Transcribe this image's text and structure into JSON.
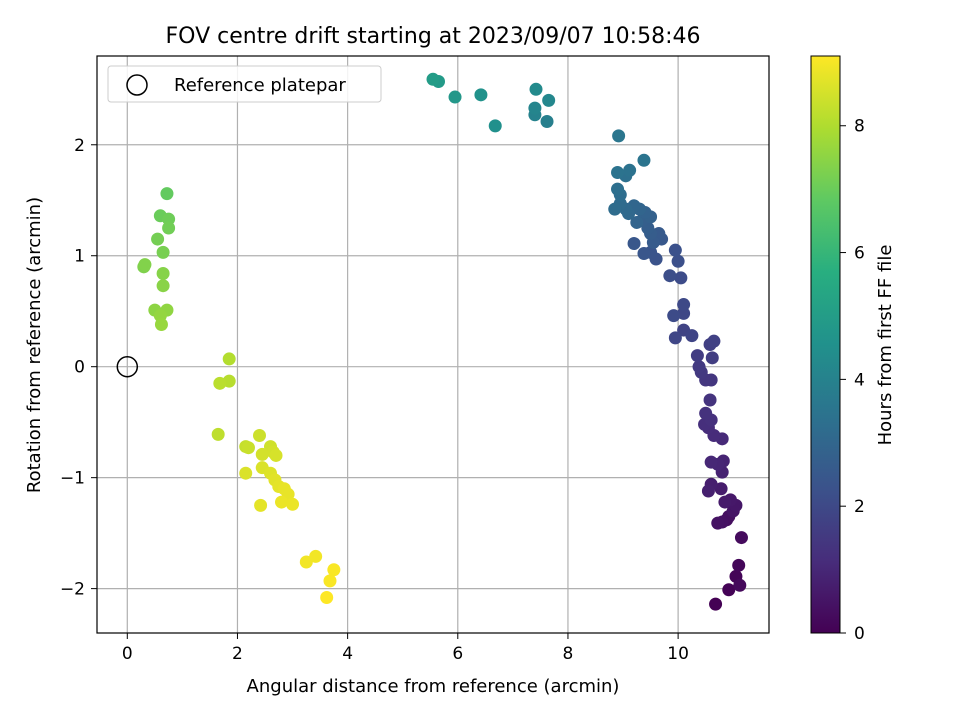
{
  "chart_data": {
    "type": "scatter",
    "title": "FOV centre drift starting at 2023/09/07 10:58:46",
    "xlabel": "Angular distance from reference (arcmin)",
    "ylabel": "Rotation from reference (arcmin)",
    "xlim": [
      -0.55,
      11.65
    ],
    "ylim": [
      -2.4,
      2.8
    ],
    "xticks": [
      "0",
      "2",
      "4",
      "6",
      "8",
      "10"
    ],
    "yticks": [
      "−2",
      "−1",
      "0",
      "1",
      "2"
    ],
    "xtick_values": [
      0,
      2,
      4,
      6,
      8,
      10
    ],
    "ytick_values": [
      -2,
      -1,
      0,
      1,
      2
    ],
    "grid": true,
    "legend": {
      "placement": "upper-left",
      "entries": [
        "Reference platepar"
      ]
    },
    "colormap": "viridis",
    "colorbar": {
      "label": "Hours from first FF file",
      "range": [
        0,
        9.1
      ],
      "ticks": [
        "0",
        "2",
        "4",
        "6",
        "8"
      ],
      "tick_values": [
        0,
        2,
        4,
        6,
        8
      ]
    },
    "reference_point": {
      "x": 0,
      "y": 0
    },
    "series": [
      {
        "marker": "circle",
        "points": [
          [
            10.68,
            -2.14,
            0.0
          ],
          [
            10.92,
            -2.01,
            0.05
          ],
          [
            11.05,
            -1.89,
            0.1
          ],
          [
            11.1,
            -1.79,
            0.15
          ],
          [
            11.12,
            -1.97,
            0.2
          ],
          [
            11.15,
            -1.54,
            0.25
          ],
          [
            10.88,
            -1.38,
            0.3
          ],
          [
            10.92,
            -1.35,
            0.35
          ],
          [
            10.8,
            -1.4,
            0.4
          ],
          [
            10.72,
            -1.41,
            0.45
          ],
          [
            11.0,
            -1.3,
            0.5
          ],
          [
            11.05,
            -1.25,
            0.55
          ],
          [
            10.95,
            -1.2,
            0.6
          ],
          [
            10.85,
            -1.22,
            0.65
          ],
          [
            10.78,
            -1.1,
            0.7
          ],
          [
            10.6,
            -1.06,
            0.75
          ],
          [
            10.55,
            -1.12,
            0.8
          ],
          [
            10.8,
            -0.95,
            0.85
          ],
          [
            10.82,
            -0.85,
            0.9
          ],
          [
            10.72,
            -0.88,
            0.95
          ],
          [
            10.6,
            -0.86,
            1.0
          ],
          [
            10.8,
            -0.65,
            1.05
          ],
          [
            10.65,
            -0.62,
            1.1
          ],
          [
            10.55,
            -0.55,
            1.15
          ],
          [
            10.48,
            -0.52,
            1.2
          ],
          [
            10.6,
            -0.48,
            1.25
          ],
          [
            10.5,
            -0.42,
            1.3
          ],
          [
            10.58,
            -0.3,
            1.35
          ],
          [
            10.6,
            -0.12,
            1.4
          ],
          [
            10.5,
            -0.12,
            1.45
          ],
          [
            10.42,
            -0.05,
            1.5
          ],
          [
            10.38,
            0.0,
            1.55
          ],
          [
            10.35,
            0.1,
            1.6
          ],
          [
            10.62,
            0.08,
            1.65
          ],
          [
            10.58,
            0.2,
            1.7
          ],
          [
            10.65,
            0.23,
            1.75
          ],
          [
            10.1,
            0.33,
            1.8
          ],
          [
            10.25,
            0.28,
            1.85
          ],
          [
            9.95,
            0.26,
            1.9
          ],
          [
            10.1,
            0.48,
            1.95
          ],
          [
            10.1,
            0.56,
            2.0
          ],
          [
            9.92,
            0.46,
            2.05
          ],
          [
            10.05,
            0.8,
            2.1
          ],
          [
            9.85,
            0.82,
            2.15
          ],
          [
            10.0,
            0.95,
            2.2
          ],
          [
            9.95,
            1.05,
            2.25
          ],
          [
            9.6,
            0.97,
            2.3
          ],
          [
            9.5,
            1.03,
            2.35
          ],
          [
            9.38,
            1.02,
            2.4
          ],
          [
            9.2,
            1.11,
            2.45
          ],
          [
            9.7,
            1.15,
            2.5
          ],
          [
            9.65,
            1.2,
            2.55
          ],
          [
            9.55,
            1.12,
            2.6
          ],
          [
            9.5,
            1.2,
            2.65
          ],
          [
            9.45,
            1.25,
            2.7
          ],
          [
            9.35,
            1.32,
            2.75
          ],
          [
            9.5,
            1.35,
            2.8
          ],
          [
            9.4,
            1.39,
            2.85
          ],
          [
            9.25,
            1.3,
            2.9
          ],
          [
            9.3,
            1.42,
            2.95
          ],
          [
            9.2,
            1.45,
            3.0
          ],
          [
            9.1,
            1.38,
            3.05
          ],
          [
            9.05,
            1.42,
            3.1
          ],
          [
            8.95,
            1.47,
            3.15
          ],
          [
            8.85,
            1.42,
            3.2
          ],
          [
            8.95,
            1.55,
            3.25
          ],
          [
            8.9,
            1.6,
            3.3
          ],
          [
            9.05,
            1.72,
            3.35
          ],
          [
            9.12,
            1.77,
            3.4
          ],
          [
            8.9,
            1.75,
            3.45
          ],
          [
            9.38,
            1.86,
            3.5
          ],
          [
            8.92,
            2.08,
            3.55
          ],
          [
            7.62,
            2.21,
            3.9
          ],
          [
            7.4,
            2.27,
            4.0
          ],
          [
            7.4,
            2.33,
            4.1
          ],
          [
            7.65,
            2.4,
            4.2
          ],
          [
            7.42,
            2.5,
            4.3
          ],
          [
            6.68,
            2.17,
            4.5
          ],
          [
            6.42,
            2.45,
            4.6
          ],
          [
            5.95,
            2.43,
            4.8
          ],
          [
            5.65,
            2.57,
            4.9
          ],
          [
            5.55,
            2.59,
            5.0
          ],
          [
            0.72,
            1.56,
            6.9
          ],
          [
            0.6,
            1.36,
            7.0
          ],
          [
            0.75,
            1.33,
            7.05
          ],
          [
            0.75,
            1.25,
            7.1
          ],
          [
            0.55,
            1.15,
            7.15
          ],
          [
            0.65,
            1.03,
            7.2
          ],
          [
            0.3,
            0.9,
            7.3
          ],
          [
            0.32,
            0.92,
            7.35
          ],
          [
            0.65,
            0.84,
            7.4
          ],
          [
            0.65,
            0.73,
            7.45
          ],
          [
            0.5,
            0.51,
            7.5
          ],
          [
            0.72,
            0.51,
            7.55
          ],
          [
            0.6,
            0.46,
            7.6
          ],
          [
            0.62,
            0.38,
            7.65
          ],
          [
            1.85,
            0.07,
            8.05
          ],
          [
            1.85,
            -0.13,
            8.1
          ],
          [
            1.68,
            -0.15,
            8.15
          ],
          [
            1.65,
            -0.61,
            8.2
          ],
          [
            2.15,
            -0.72,
            8.3
          ],
          [
            2.2,
            -0.73,
            8.35
          ],
          [
            2.4,
            -0.62,
            8.4
          ],
          [
            2.6,
            -0.72,
            8.45
          ],
          [
            2.65,
            -0.77,
            8.5
          ],
          [
            2.45,
            -0.79,
            8.5
          ],
          [
            2.7,
            -0.8,
            8.55
          ],
          [
            2.45,
            -0.91,
            8.6
          ],
          [
            2.6,
            -0.96,
            8.65
          ],
          [
            2.15,
            -0.96,
            8.6
          ],
          [
            2.68,
            -1.02,
            8.7
          ],
          [
            2.75,
            -1.08,
            8.75
          ],
          [
            2.85,
            -1.1,
            8.8
          ],
          [
            2.92,
            -1.15,
            8.8
          ],
          [
            2.8,
            -1.22,
            8.85
          ],
          [
            2.42,
            -1.25,
            8.75
          ],
          [
            3.0,
            -1.24,
            8.85
          ],
          [
            3.25,
            -1.76,
            8.95
          ],
          [
            3.42,
            -1.71,
            8.95
          ],
          [
            3.75,
            -1.83,
            9.05
          ],
          [
            3.68,
            -1.93,
            9.05
          ],
          [
            3.62,
            -2.08,
            9.1
          ]
        ]
      }
    ]
  }
}
